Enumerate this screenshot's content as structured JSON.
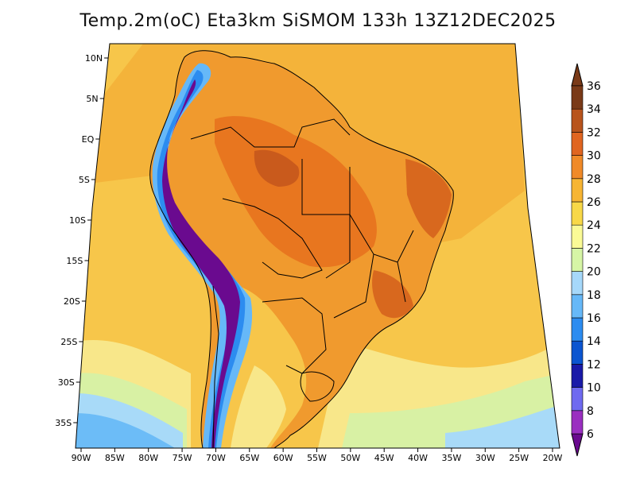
{
  "title": "Temp.2m(oC) Eta3km SiSMOM 133h 13Z12DEC2025",
  "chart_data": {
    "type": "heatmap",
    "variable": "2 m air temperature",
    "units": "°C",
    "model": "Eta3km SiSMOM",
    "forecast_hour": "133h",
    "valid_time": "13Z12DEC2025",
    "lon_range": [
      -90,
      -20
    ],
    "lat_range": [
      -38,
      12
    ],
    "x_tick_labels": [
      "90W",
      "85W",
      "80W",
      "75W",
      "70W",
      "65W",
      "60W",
      "55W",
      "50W",
      "45W",
      "40W",
      "35W",
      "30W",
      "25W",
      "20W"
    ],
    "x_tick_values": [
      -90,
      -85,
      -80,
      -75,
      -70,
      -65,
      -60,
      -55,
      -50,
      -45,
      -40,
      -35,
      -30,
      -25,
      -20
    ],
    "y_tick_labels": [
      "10N",
      "5N",
      "EQ",
      "5S",
      "10S",
      "15S",
      "20S",
      "25S",
      "30S",
      "35S"
    ],
    "y_tick_values": [
      10,
      5,
      0,
      -5,
      -10,
      -15,
      -20,
      -25,
      -30,
      -35
    ],
    "colorbar": {
      "labels": [
        "6",
        "8",
        "10",
        "12",
        "14",
        "16",
        "18",
        "20",
        "22",
        "24",
        "26",
        "28",
        "30",
        "32",
        "34",
        "36"
      ],
      "colors": [
        "#6a0a8f",
        "#9a2fc0",
        "#6f6af0",
        "#1a1aa8",
        "#0b55d0",
        "#2c8cf0",
        "#66b8f8",
        "#a6d8fa",
        "#d6f5a6",
        "#fafa96",
        "#f8d848",
        "#f7b533",
        "#f08a28",
        "#e06520",
        "#b8541c",
        "#7a3a18"
      ]
    },
    "sea_color": "#f7c64a",
    "land_color": "#f09a2e"
  }
}
